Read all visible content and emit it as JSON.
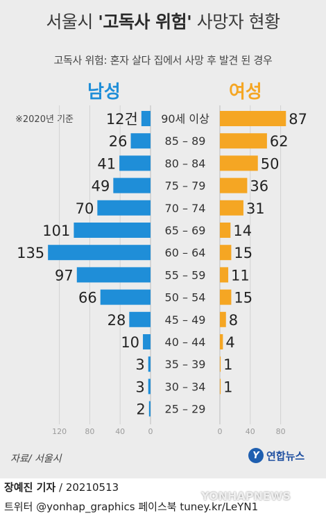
{
  "title": {
    "prefix": "서울시 ",
    "bold": "'고독사 위험'",
    "suffix": " 사망자 현황"
  },
  "subtitle": "고독사 위험: 혼자 살다 집에서 사망 후 발견 된 경우",
  "male_label": "남성",
  "female_label": "여성",
  "basis_note": "※2020년 기준",
  "source": "자료/ 서울시",
  "logo_text": "연합뉴스",
  "byline_name": "장예진 기자",
  "byline_date": " / 20210513",
  "social": "트위터 @yonhap_graphics  페이스북 tuney.kr/LeYN1",
  "watermark": "YONHAPNEWS",
  "colors": {
    "male": "#1f8ed8",
    "female": "#f5a623",
    "background": "#ececec"
  },
  "chart_data": {
    "type": "bar",
    "orientation": "horizontal-butterfly",
    "categories": [
      "90세 이상",
      "85 – 89",
      "80 – 84",
      "75 – 79",
      "70 – 74",
      "65 – 69",
      "60 – 64",
      "55 – 59",
      "50 – 54",
      "45 – 49",
      "40 – 44",
      "35 – 39",
      "30 – 34",
      "25 – 29"
    ],
    "series": [
      {
        "name": "남성",
        "values": [
          12,
          26,
          41,
          49,
          70,
          101,
          135,
          97,
          66,
          28,
          10,
          3,
          3,
          2
        ],
        "labels": [
          "12건",
          "26",
          "41",
          "49",
          "70",
          "101",
          "135",
          "97",
          "66",
          "28",
          "10",
          "3",
          "3",
          "2"
        ]
      },
      {
        "name": "여성",
        "values": [
          87,
          62,
          50,
          36,
          31,
          14,
          15,
          11,
          15,
          8,
          4,
          1,
          1,
          0
        ],
        "labels": [
          "87",
          "62",
          "50",
          "36",
          "31",
          "14",
          "15",
          "11",
          "15",
          "8",
          "4",
          "1",
          "1",
          ""
        ]
      }
    ],
    "male_axis_ticks": [
      "120",
      "80",
      "40",
      "0"
    ],
    "female_axis_ticks": [
      "0",
      "40",
      "80"
    ],
    "xlim": [
      0,
      135
    ],
    "grid": true
  }
}
